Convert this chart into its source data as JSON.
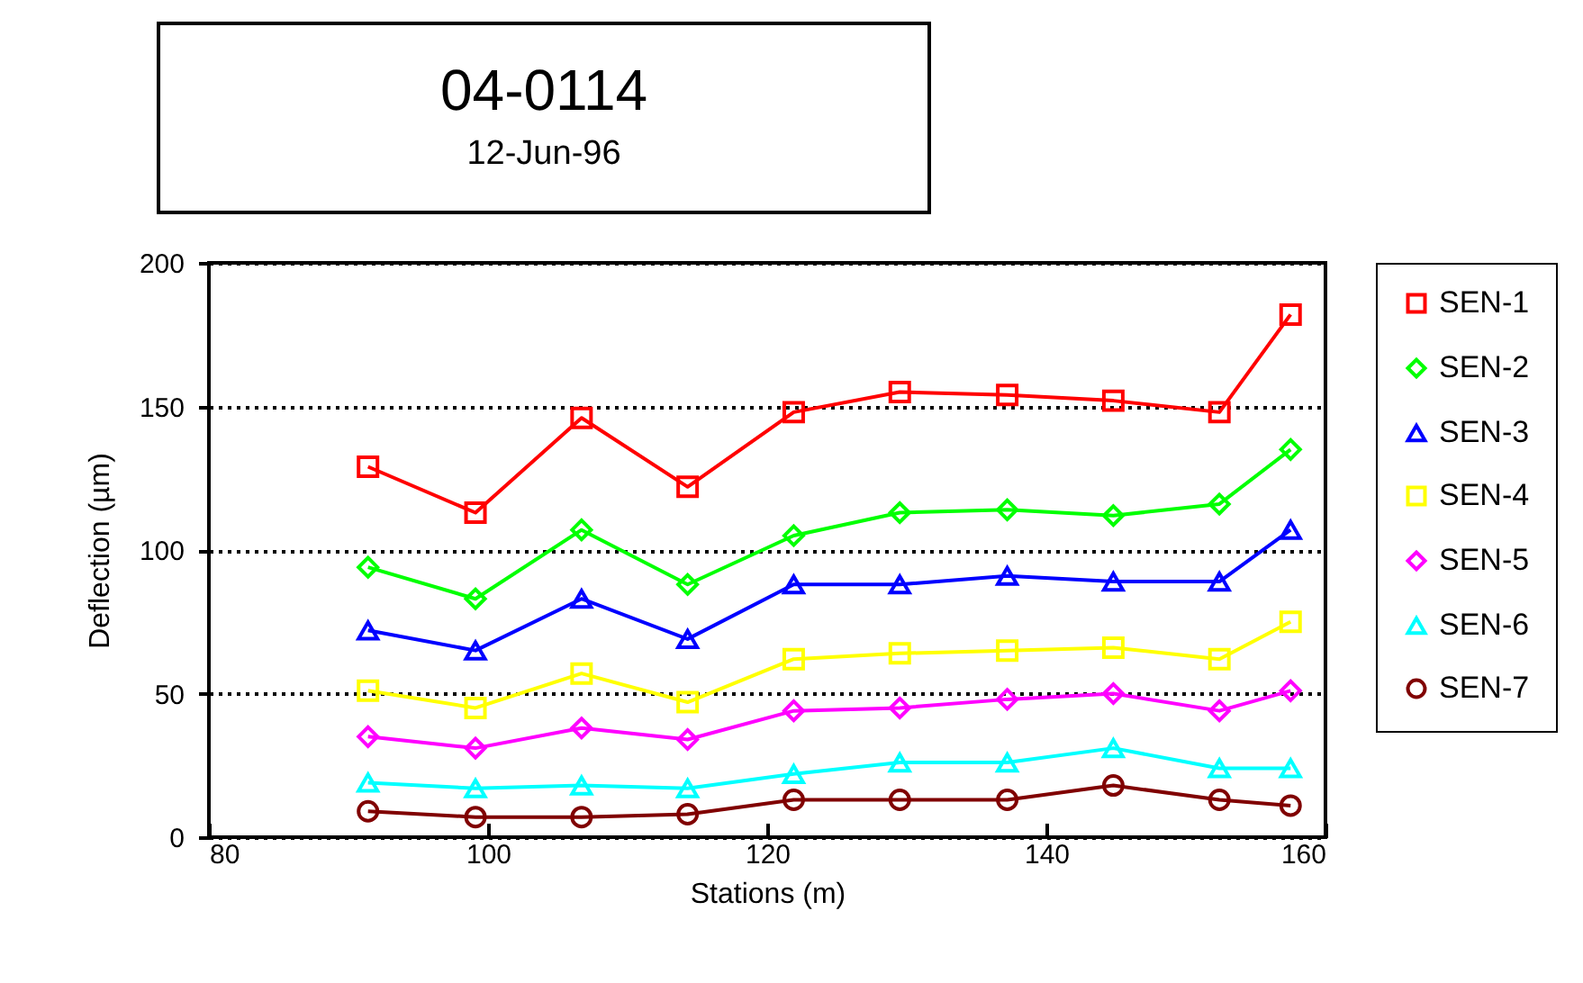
{
  "chart_data": {
    "type": "line",
    "title": "04-0114",
    "subtitle": "12-Jun-96",
    "xlabel": "Stations (m)",
    "ylabel": "Deflection (µm)",
    "x": [
      91.4,
      99.1,
      106.7,
      114.3,
      121.9,
      129.5,
      137.2,
      144.8,
      152.4,
      157.5
    ],
    "xlim": [
      80,
      160
    ],
    "xticks": [
      80,
      100,
      120,
      140,
      160
    ],
    "ylim": [
      0,
      200
    ],
    "yticks": [
      0,
      50,
      100,
      150,
      200
    ],
    "grid": "y",
    "legend": "right",
    "line_style": "solid",
    "series": [
      {
        "name": "SEN-1",
        "color": "#ff0000",
        "marker": "square",
        "values": [
          129,
          113,
          146,
          122,
          148,
          155,
          154,
          152,
          148,
          182
        ]
      },
      {
        "name": "SEN-2",
        "color": "#00ff00",
        "marker": "diamond",
        "values": [
          94,
          83,
          107,
          88,
          105,
          113,
          114,
          112,
          116,
          135
        ]
      },
      {
        "name": "SEN-3",
        "color": "#0000ff",
        "marker": "triangle",
        "values": [
          72,
          65,
          83,
          69,
          88,
          88,
          91,
          89,
          89,
          107
        ]
      },
      {
        "name": "SEN-4",
        "color": "#ffff00",
        "marker": "square",
        "values": [
          51,
          45,
          57,
          47,
          62,
          64,
          65,
          66,
          62,
          75
        ]
      },
      {
        "name": "SEN-5",
        "color": "#ff00ff",
        "marker": "diamond",
        "values": [
          35,
          31,
          38,
          34,
          44,
          45,
          48,
          50,
          44,
          51
        ]
      },
      {
        "name": "SEN-6",
        "color": "#00ffff",
        "marker": "triangle",
        "values": [
          19,
          17,
          18,
          17,
          22,
          26,
          26,
          31,
          24,
          24
        ]
      },
      {
        "name": "SEN-7",
        "color": "#800000",
        "marker": "circle",
        "values": [
          9,
          7,
          7,
          8,
          13,
          13,
          13,
          18,
          13,
          11
        ]
      }
    ]
  }
}
